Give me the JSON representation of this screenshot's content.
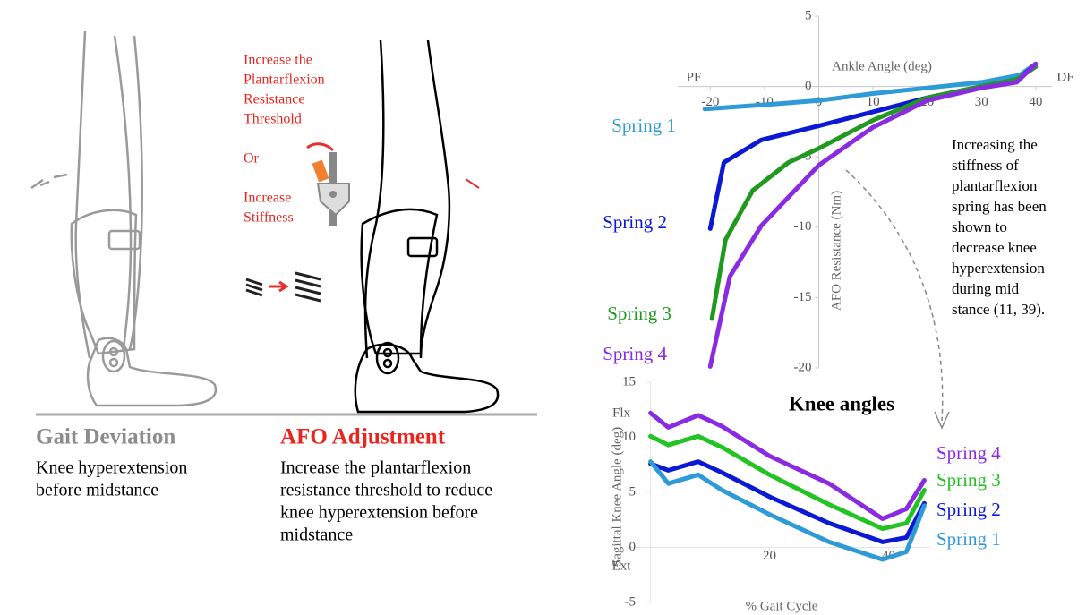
{
  "illustration": {
    "threshold_prompt": [
      "Increase the",
      "Plantarflexion",
      "Resistance",
      "Threshold"
    ],
    "or": "Or",
    "stiffness_prompt": [
      "Increase",
      "Stiffness"
    ]
  },
  "captions": {
    "deviation": {
      "title": "Gait Deviation",
      "lines": [
        "Knee hyperextension",
        "before midstance"
      ]
    },
    "adjustment": {
      "title": "AFO Adjustment",
      "lines": [
        "Increase the plantarflexion",
        "resistance threshold to reduce",
        "knee hyperextension before",
        "midstance"
      ]
    }
  },
  "chart_data": [
    {
      "type": "line",
      "xlabel": "Ankle Angle (deg)",
      "ylabel": "AFO Resistance (Nm)",
      "x_ends": [
        "PF",
        "DF"
      ],
      "note": [
        "Increasing the",
        "stiffness of",
        "plantarflexion",
        "spring has been",
        "shown to",
        "decrease knee",
        "hyperextension",
        "during mid",
        "stance (11, 39)."
      ],
      "xlim": [
        -26,
        43
      ],
      "ylim": [
        -20,
        5
      ],
      "xticks": [
        -20,
        -10,
        0,
        10,
        20,
        30,
        40
      ],
      "yticks": [
        5,
        0,
        -5,
        -10,
        -15,
        -20
      ],
      "series": [
        {
          "name": "Spring 1",
          "color": "#2e9ad6",
          "x": [
            -21,
            -10,
            0,
            10,
            20,
            30,
            37,
            40
          ],
          "values": [
            -1.6,
            -1.3,
            -1.0,
            -0.5,
            -0.1,
            0.3,
            0.8,
            1.6
          ]
        },
        {
          "name": "Spring 2",
          "color": "#0b18d4",
          "x": [
            -20,
            -17.5,
            -10.6,
            0,
            10,
            20,
            30,
            36.5,
            40
          ],
          "values": [
            -10.1,
            -5.4,
            -3.8,
            -2.8,
            -1.8,
            -0.8,
            0,
            0.4,
            1.6
          ]
        },
        {
          "name": "Spring 3",
          "color": "#1f9a1f",
          "x": [
            -19.7,
            -17.2,
            -12.2,
            -5.6,
            0,
            10,
            20,
            30,
            36.5,
            40
          ],
          "values": [
            -16.5,
            -10.9,
            -7.4,
            -5.4,
            -4.4,
            -2.4,
            -0.8,
            0,
            0.5,
            1.4
          ]
        },
        {
          "name": "Spring 4",
          "color": "#8a2be2",
          "x": [
            -20,
            -16.4,
            -10.6,
            0,
            10,
            20,
            30,
            36.5,
            40
          ],
          "values": [
            -19.9,
            -13.5,
            -9.9,
            -5.6,
            -2.9,
            -1.0,
            -0.1,
            0.3,
            1.6
          ]
        }
      ]
    },
    {
      "type": "line",
      "title": "Knee angles",
      "xlabel": "% Gait Cycle",
      "ylabel": "Sagittal Knee Angle (deg)",
      "y_ends": [
        "Flx",
        "Ext"
      ],
      "xlim": [
        -4,
        47
      ],
      "ylim": [
        -5,
        15
      ],
      "xticks": [
        20,
        40
      ],
      "yticks": [
        15,
        10,
        5,
        0,
        -5
      ],
      "series": [
        {
          "name": "Spring 4",
          "color": "#8a2be2",
          "x": [
            0,
            3,
            8,
            12,
            20,
            30,
            39,
            43,
            46
          ],
          "values": [
            12.2,
            10.9,
            12.0,
            11.0,
            8.3,
            5.8,
            2.6,
            3.5,
            6.1
          ]
        },
        {
          "name": "Spring 3",
          "color": "#22c322",
          "x": [
            0,
            3,
            8,
            12,
            20,
            30,
            39,
            43,
            46
          ],
          "values": [
            10.1,
            9.3,
            10.1,
            9.1,
            6.6,
            3.9,
            1.7,
            2.2,
            5.2
          ]
        },
        {
          "name": "Spring 2",
          "color": "#0b18d4",
          "x": [
            0,
            3,
            8,
            12,
            20,
            30,
            39,
            43,
            46
          ],
          "values": [
            7.6,
            7.0,
            7.8,
            6.8,
            4.6,
            2.2,
            0.5,
            0.9,
            4.0
          ]
        },
        {
          "name": "Spring 1",
          "color": "#2e9ad6",
          "x": [
            0,
            3,
            8,
            12,
            20,
            30,
            39,
            43,
            46
          ],
          "values": [
            7.8,
            5.8,
            6.6,
            5.2,
            3.0,
            0.5,
            -1.1,
            -0.4,
            3.8
          ]
        }
      ]
    }
  ]
}
